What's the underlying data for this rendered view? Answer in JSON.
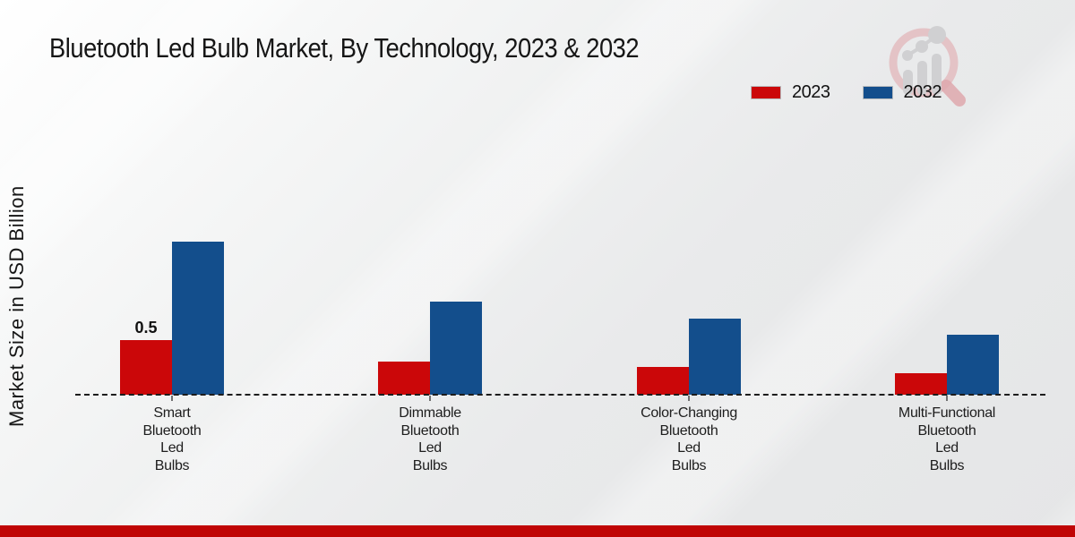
{
  "title": "Bluetooth Led Bulb Market, By Technology, 2023 & 2032",
  "y_axis_label": "Market Size in USD Billion",
  "legend": [
    {
      "label": "2023",
      "color": "#cb0709"
    },
    {
      "label": "2032",
      "color": "#134e8c"
    }
  ],
  "colors": {
    "bar_2023": "#cb0709",
    "bar_2032": "#134e8c",
    "footer_stripe": "#c00505",
    "baseline": "#1c1c1c"
  },
  "chart_data": {
    "type": "bar",
    "categories": [
      "Smart Bluetooth Led Bulbs",
      "Dimmable Bluetooth Led Bulbs",
      "Color-Changing Bluetooth Led Bulbs",
      "Multi-Functional Bluetooth Led Bulbs"
    ],
    "categories_lines": [
      [
        "Smart",
        "Bluetooth",
        "Led",
        "Bulbs"
      ],
      [
        "Dimmable",
        "Bluetooth",
        "Led",
        "Bulbs"
      ],
      [
        "Color-Changing",
        "Bluetooth",
        "Led",
        "Bulbs"
      ],
      [
        "Multi-Functional",
        "Bluetooth",
        "Led",
        "Bulbs"
      ]
    ],
    "series": [
      {
        "name": "2023",
        "color": "#cb0709",
        "values": [
          0.5,
          0.3,
          0.25,
          0.2
        ]
      },
      {
        "name": "2032",
        "color": "#134e8c",
        "values": [
          1.4,
          0.85,
          0.7,
          0.55
        ]
      }
    ],
    "data_labels_2023": [
      "0.5",
      "",
      "",
      ""
    ],
    "title": "Bluetooth Led Bulb Market, By Technology, 2023 & 2032",
    "xlabel": "",
    "ylabel": "Market Size in USD Billion",
    "ylim": [
      0,
      1.5
    ],
    "grid": false,
    "legend_position": "top-right",
    "baseline_style": "dashed"
  }
}
